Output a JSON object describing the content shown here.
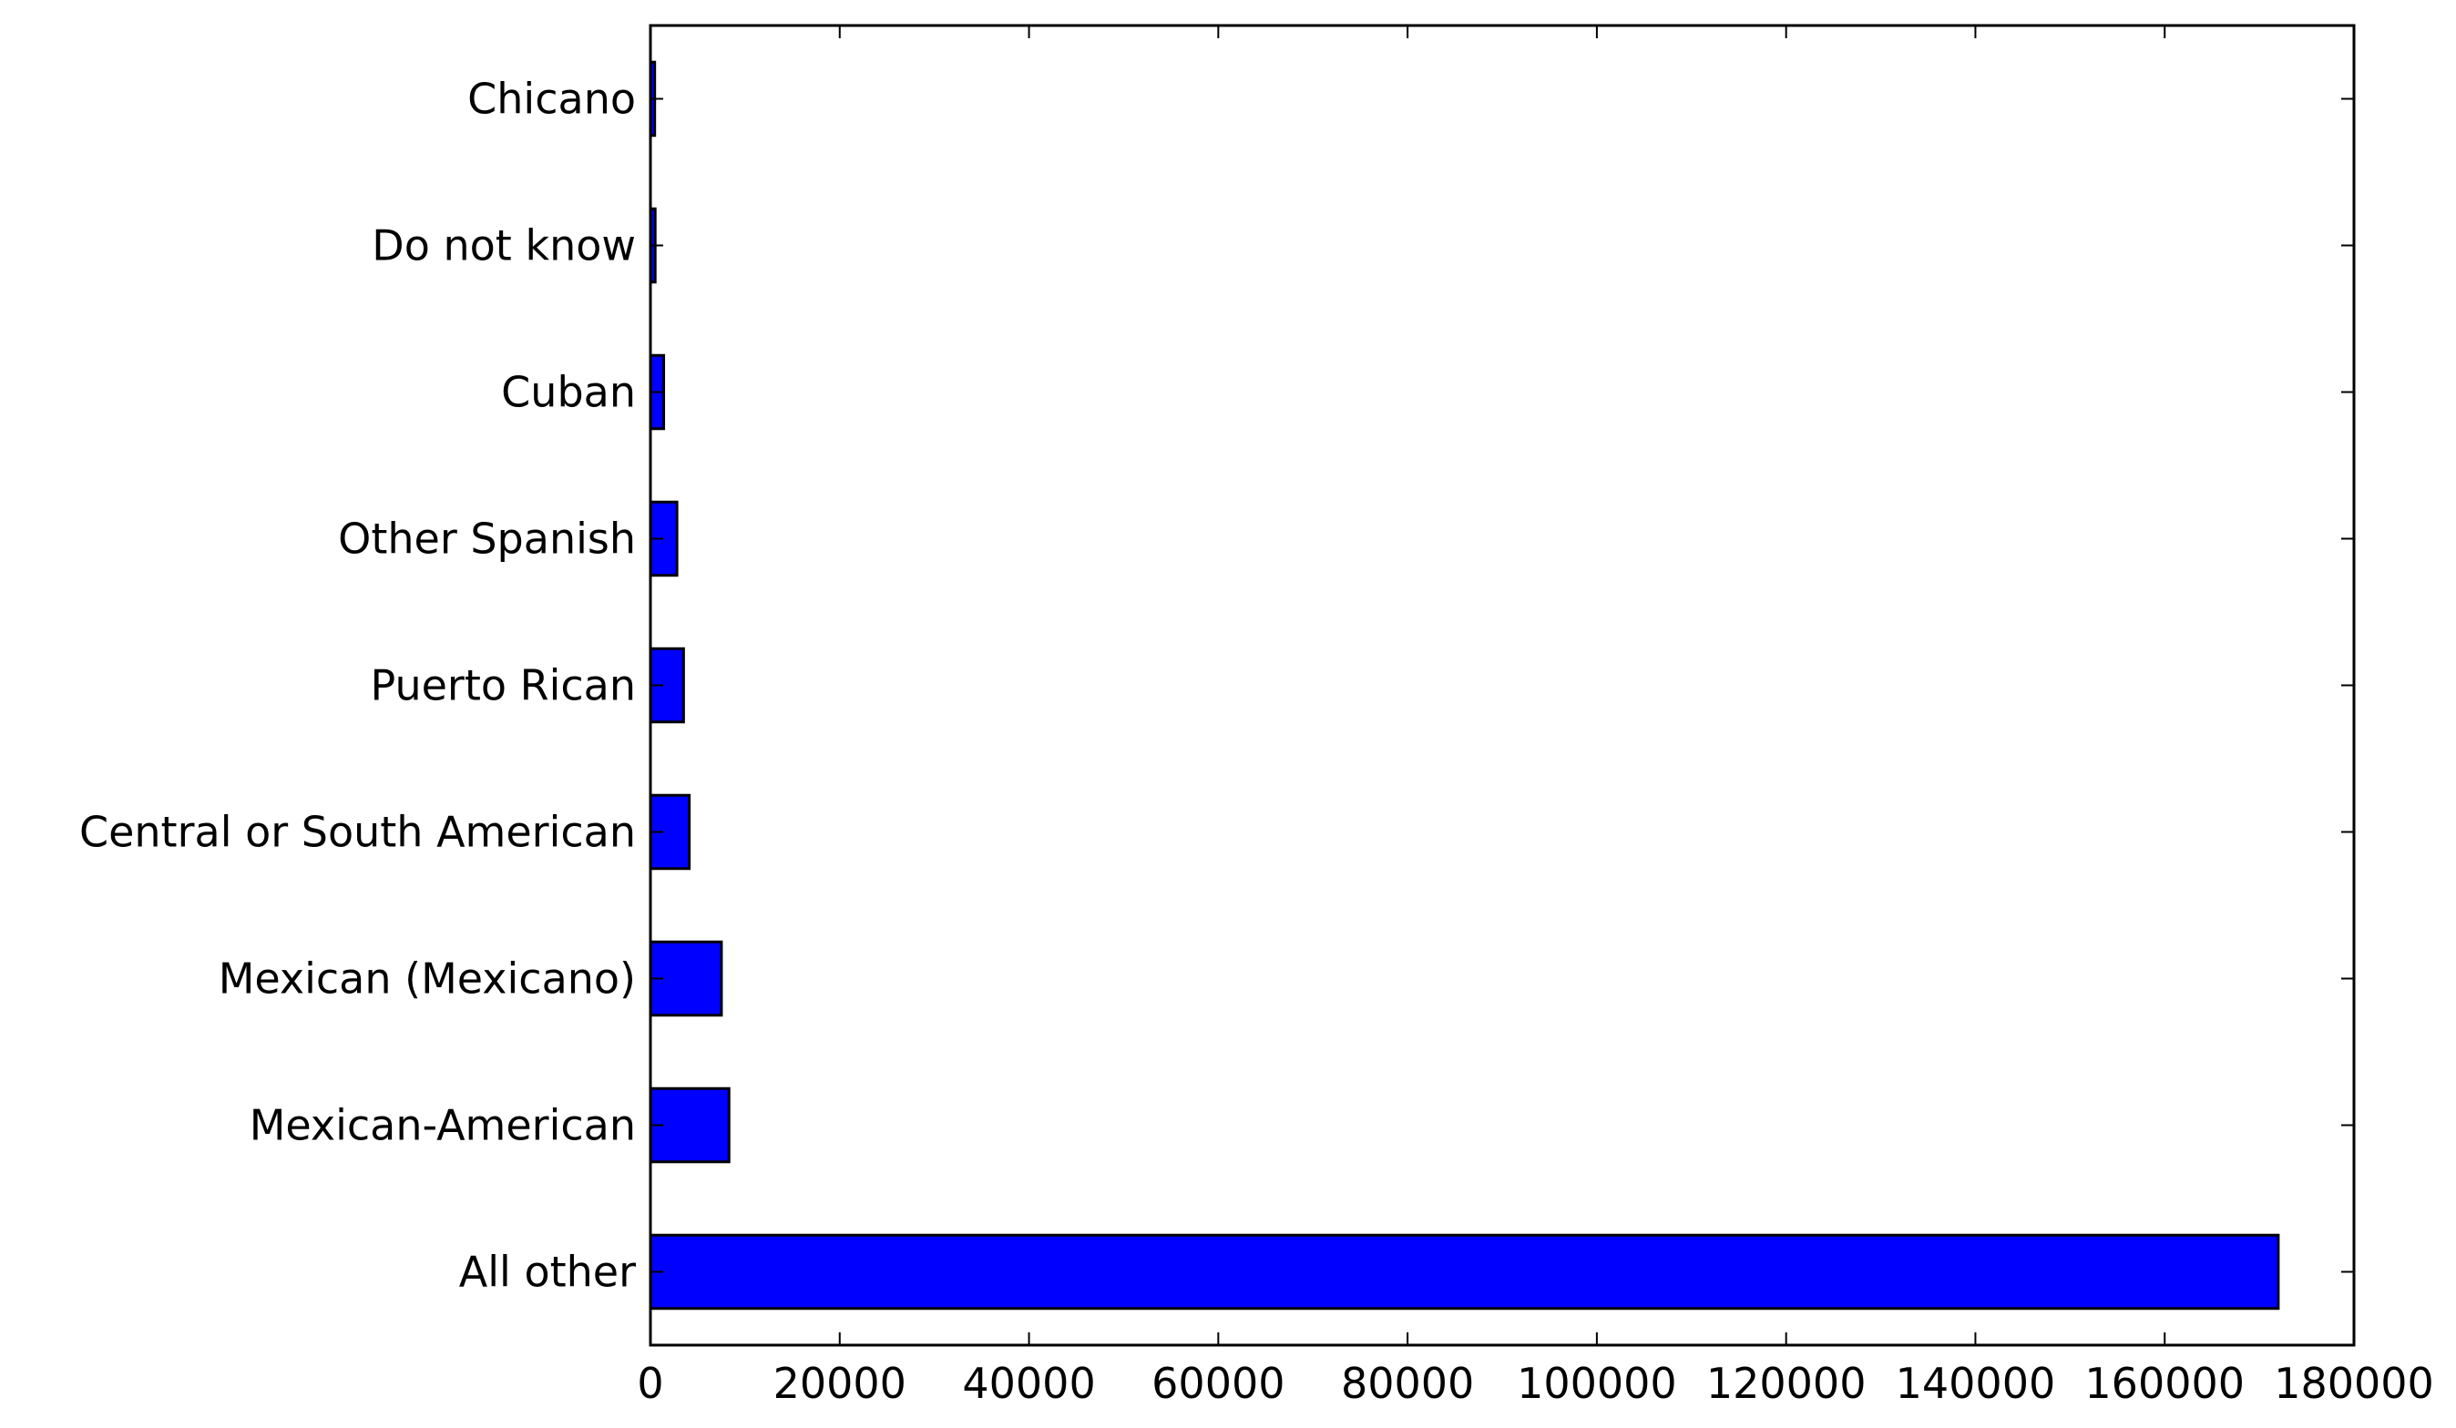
{
  "chart_data": {
    "type": "bar",
    "orientation": "horizontal",
    "title": "",
    "xlabel": "",
    "ylabel": "",
    "categories": [
      "All other",
      "Mexican-American",
      "Mexican (Mexicano)",
      "Central or South American",
      "Puerto Rican",
      "Other Spanish",
      "Cuban",
      "Do not know",
      "Chicano"
    ],
    "values": [
      172000,
      8300,
      7500,
      4100,
      3500,
      2800,
      1400,
      500,
      450
    ],
    "xlim": [
      0,
      180000
    ],
    "xticks": [
      0,
      20000,
      40000,
      60000,
      80000,
      100000,
      120000,
      140000,
      160000,
      180000
    ],
    "grid": false,
    "legend": "none",
    "bar_color": "#0000ff",
    "edge_color": "#000000"
  }
}
